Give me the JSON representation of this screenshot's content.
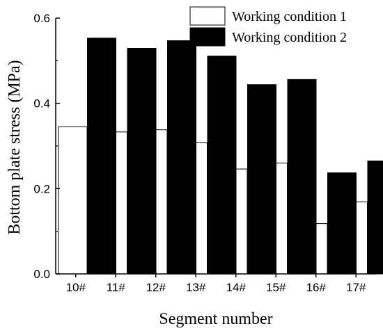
{
  "chart_data": {
    "type": "bar",
    "xlabel": "Segment number",
    "ylabel": "Bottom plate stress (MPa)",
    "categories": [
      "10#",
      "11#",
      "12#",
      "13#",
      "14#",
      "15#",
      "16#",
      "17#"
    ],
    "series": [
      {
        "name": "Working condition 1",
        "fill": "#ffffff",
        "stroke": "#000000",
        "values": [
          0.345,
          0.333,
          0.338,
          0.308,
          0.246,
          0.26,
          0.118,
          0.169
        ]
      },
      {
        "name": "Working condition 2",
        "fill": "#000000",
        "stroke": "#000000",
        "values": [
          0.553,
          0.529,
          0.547,
          0.511,
          0.444,
          0.456,
          0.237,
          0.265
        ]
      }
    ],
    "ylim": [
      0,
      0.6
    ],
    "yticks": [
      "0.0",
      "0.2",
      "0.4",
      "0.6"
    ],
    "legend_position": "top-right",
    "grid": false
  }
}
